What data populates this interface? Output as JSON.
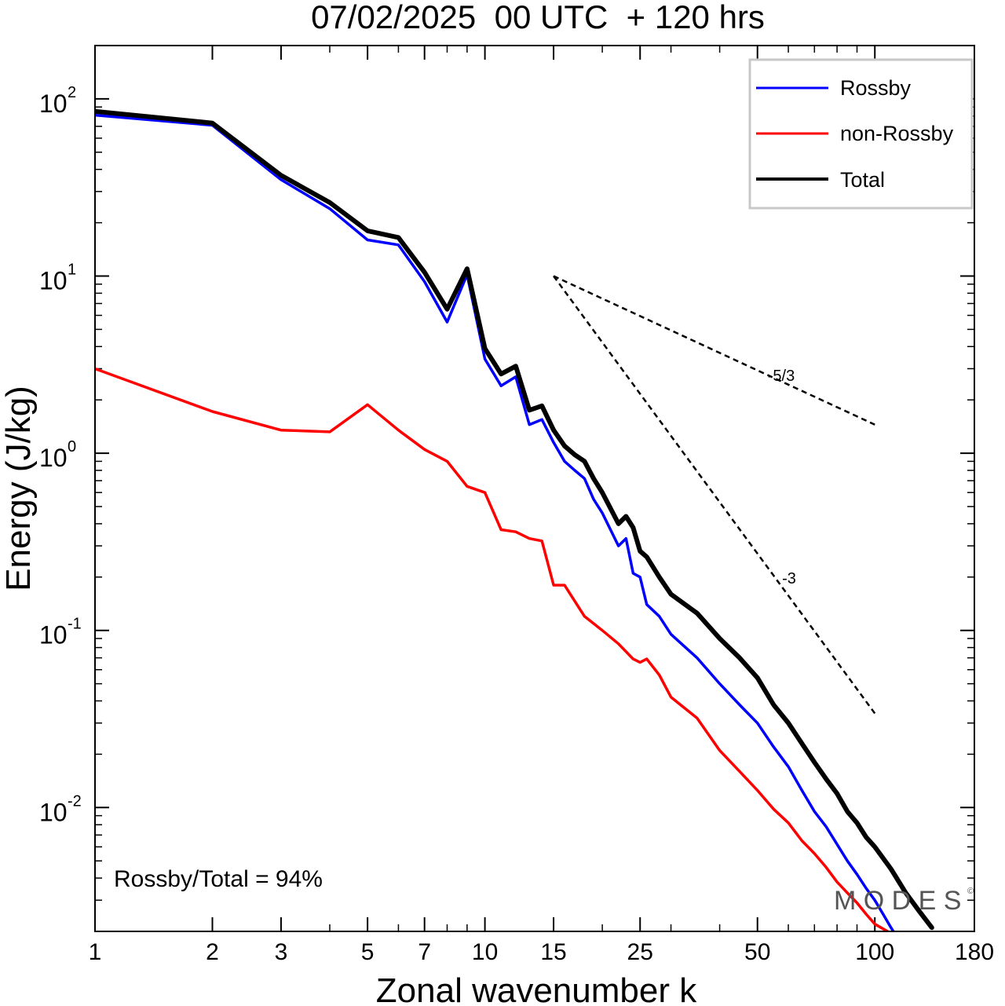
{
  "chart_data": {
    "type": "line",
    "title": "07/02/2025  00 UTC  + 120 hrs",
    "xlabel": "Zonal wavenumber k",
    "ylabel": "Energy (J/kg)",
    "x_scale": "log",
    "y_scale": "log",
    "xlim": [
      1,
      180
    ],
    "ylim": [
      0.002,
      200
    ],
    "x_ticks": [
      1,
      2,
      3,
      5,
      7,
      10,
      15,
      25,
      50,
      100,
      180
    ],
    "y_ticks": [
      {
        "base": "10",
        "exp": "2",
        "value": 100
      },
      {
        "base": "10",
        "exp": "1",
        "value": 10
      },
      {
        "base": "10",
        "exp": "0",
        "value": 1
      },
      {
        "base": "10",
        "exp": "-1",
        "value": 0.1
      },
      {
        "base": "10",
        "exp": "-2",
        "value": 0.01
      }
    ],
    "legend_position": "top-right",
    "colors": {
      "rossby": "#0000ff",
      "non_rossby": "#ff0000",
      "total": "#000000"
    },
    "series": [
      {
        "name": "Rossby",
        "color": "#0000ff",
        "x": [
          1,
          2,
          3,
          4,
          5,
          6,
          7,
          8,
          9,
          10,
          11,
          12,
          13,
          14,
          15,
          16,
          17,
          18,
          19,
          20,
          22,
          23,
          24,
          25,
          26,
          28,
          30,
          35,
          40,
          45,
          50,
          55,
          60,
          65,
          70,
          75,
          80,
          85,
          90,
          95,
          100,
          105,
          110,
          115
        ],
        "y": [
          81,
          71,
          35,
          24,
          16,
          15,
          9.3,
          5.5,
          10.2,
          3.4,
          2.4,
          2.7,
          1.45,
          1.55,
          1.15,
          0.9,
          0.8,
          0.72,
          0.55,
          0.46,
          0.3,
          0.33,
          0.21,
          0.2,
          0.14,
          0.12,
          0.095,
          0.07,
          0.05,
          0.038,
          0.03,
          0.022,
          0.017,
          0.0125,
          0.0095,
          0.0078,
          0.0062,
          0.005,
          0.0042,
          0.0035,
          0.003,
          0.0025,
          0.0021,
          0.0018
        ]
      },
      {
        "name": "non-Rossby",
        "color": "#ff0000",
        "x": [
          1,
          2,
          3,
          4,
          5,
          6,
          7,
          8,
          9,
          10,
          11,
          12,
          13,
          14,
          15,
          16,
          18,
          20,
          22,
          24,
          25,
          26,
          28,
          30,
          35,
          40,
          45,
          50,
          55,
          60,
          65,
          70,
          75,
          80,
          85,
          90,
          95,
          100,
          110,
          120
        ],
        "y": [
          3,
          1.72,
          1.35,
          1.32,
          1.88,
          1.35,
          1.05,
          0.9,
          0.65,
          0.6,
          0.37,
          0.36,
          0.33,
          0.32,
          0.18,
          0.18,
          0.12,
          0.1,
          0.084,
          0.069,
          0.066,
          0.069,
          0.056,
          0.042,
          0.032,
          0.021,
          0.016,
          0.0125,
          0.0098,
          0.0082,
          0.0065,
          0.0055,
          0.0046,
          0.0038,
          0.0033,
          0.0029,
          0.0025,
          0.0022,
          0.00195,
          0.0018
        ]
      },
      {
        "name": "Total",
        "color": "#000000",
        "x": [
          1,
          2,
          3,
          4,
          5,
          6,
          7,
          8,
          9,
          10,
          11,
          12,
          13,
          14,
          15,
          16,
          17,
          18,
          19,
          20,
          22,
          23,
          24,
          25,
          26,
          28,
          30,
          35,
          40,
          45,
          50,
          55,
          60,
          65,
          70,
          75,
          80,
          85,
          90,
          95,
          100,
          110,
          120,
          130,
          140
        ],
        "y": [
          85,
          73,
          37,
          26,
          18,
          16.5,
          10.5,
          6.5,
          11,
          3.9,
          2.8,
          3.1,
          1.75,
          1.85,
          1.35,
          1.1,
          0.98,
          0.9,
          0.72,
          0.6,
          0.4,
          0.44,
          0.38,
          0.28,
          0.26,
          0.2,
          0.16,
          0.125,
          0.09,
          0.07,
          0.054,
          0.038,
          0.03,
          0.023,
          0.018,
          0.0145,
          0.012,
          0.0095,
          0.0082,
          0.0068,
          0.006,
          0.0045,
          0.0033,
          0.0026,
          0.0021
        ]
      }
    ],
    "reference_slopes": [
      {
        "label": "-5/3",
        "x": [
          15,
          100
        ],
        "y": [
          10,
          1.45
        ]
      },
      {
        "label": "-3",
        "x": [
          15,
          100
        ],
        "y": [
          10,
          0.034
        ]
      }
    ],
    "annotation": "Rossby/Total = 94%",
    "watermark": "M O D E S",
    "watermark_mark": "©"
  }
}
